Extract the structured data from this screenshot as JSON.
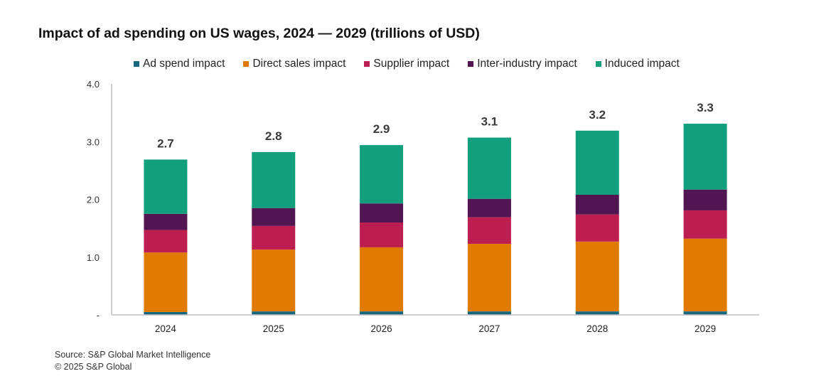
{
  "chart_data": {
    "type": "bar",
    "stacked": true,
    "title": "Impact of ad spending on US wages, 2024 — 2029 (trillions of USD)",
    "xlabel": "",
    "ylabel": "",
    "ylim": [
      0,
      4.0
    ],
    "yticks": [
      0,
      1.0,
      2.0,
      3.0,
      4.0
    ],
    "ytick_labels": [
      "-",
      "1.0",
      "2.0",
      "3.0",
      "4.0"
    ],
    "grid": false,
    "legend_position": "top",
    "categories": [
      "2024",
      "2025",
      "2026",
      "2027",
      "2028",
      "2029"
    ],
    "series": [
      {
        "name": "Ad spend impact",
        "color": "#17687e",
        "values": [
          0.05,
          0.06,
          0.06,
          0.06,
          0.06,
          0.06
        ]
      },
      {
        "name": "Direct sales impact",
        "color": "#e07b00",
        "values": [
          1.03,
          1.07,
          1.11,
          1.17,
          1.21,
          1.26
        ]
      },
      {
        "name": "Supplier impact",
        "color": "#bc1f4f",
        "values": [
          0.39,
          0.41,
          0.43,
          0.46,
          0.47,
          0.49
        ]
      },
      {
        "name": "Inter-industry impact",
        "color": "#511652",
        "values": [
          0.28,
          0.31,
          0.33,
          0.32,
          0.34,
          0.36
        ]
      },
      {
        "name": "Induced impact",
        "color": "#129f7c",
        "values": [
          0.94,
          0.97,
          1.01,
          1.06,
          1.11,
          1.14
        ]
      }
    ],
    "totals": [
      2.7,
      2.8,
      2.9,
      3.1,
      3.2,
      3.3
    ],
    "total_labels": [
      "2.7",
      "2.8",
      "2.9",
      "3.1",
      "3.2",
      "3.3"
    ]
  },
  "footer": {
    "source": "Source: S&P Global Market Intelligence",
    "copyright": "© 2025 S&P Global"
  }
}
